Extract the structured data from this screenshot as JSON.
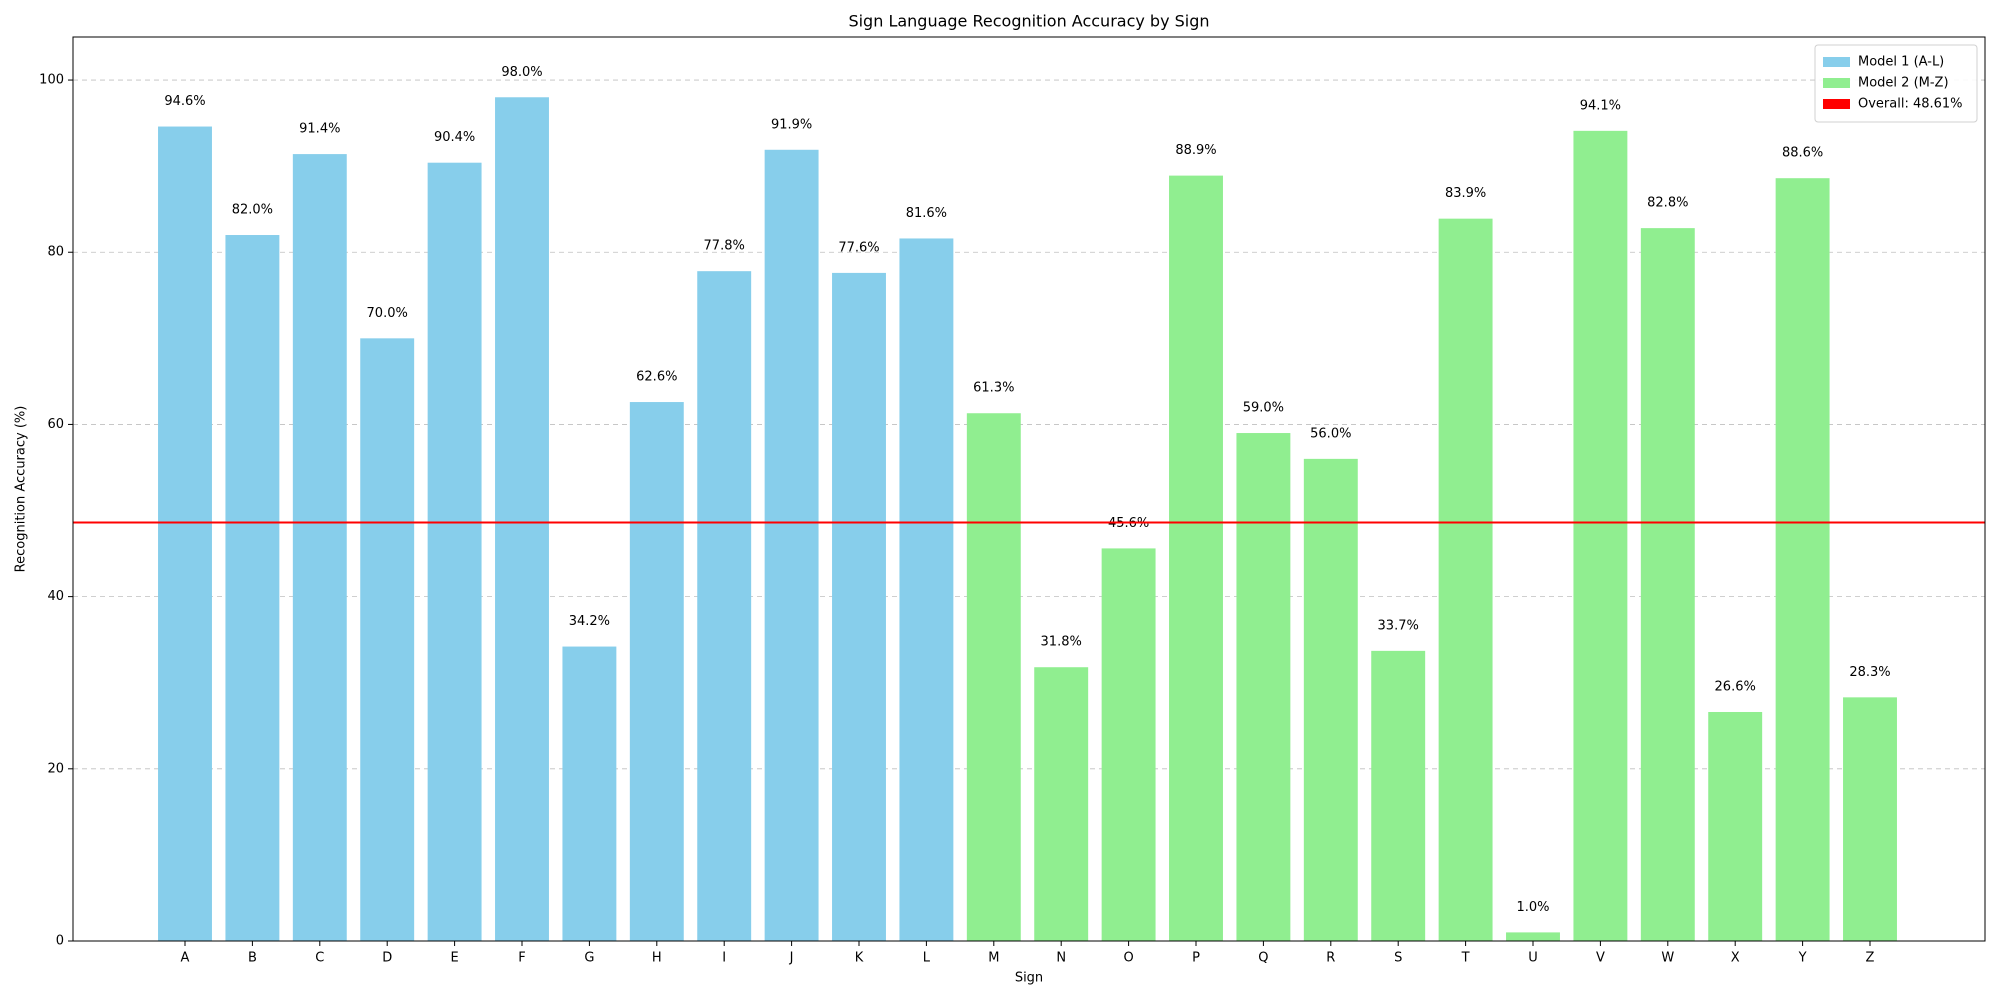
{
  "chart_data": {
    "type": "bar",
    "title": "Sign Language Recognition Accuracy by Sign",
    "x_label": "Sign",
    "y_label": "Recognition Accuracy (%)",
    "categories": [
      "A",
      "B",
      "C",
      "D",
      "E",
      "F",
      "G",
      "H",
      "I",
      "J",
      "K",
      "L",
      "M",
      "N",
      "O",
      "P",
      "Q",
      "R",
      "S",
      "T",
      "U",
      "V",
      "W",
      "X",
      "Y",
      "Z"
    ],
    "series": [
      {
        "name": "Model 1 (A-L)",
        "color": "#87ceeb",
        "values": [
          94.6,
          82.0,
          91.4,
          70.0,
          90.4,
          98.0,
          34.2,
          62.6,
          77.8,
          91.9,
          77.6,
          81.6,
          null,
          null,
          null,
          null,
          null,
          null,
          null,
          null,
          null,
          null,
          null,
          null,
          null,
          null
        ],
        "value_labels": [
          "94.6%",
          "82.0%",
          "91.4%",
          "70.0%",
          "90.4%",
          "98.0%",
          "34.2%",
          "62.6%",
          "77.8%",
          "91.9%",
          "77.6%",
          "81.6%",
          null,
          null,
          null,
          null,
          null,
          null,
          null,
          null,
          null,
          null,
          null,
          null,
          null,
          null
        ]
      },
      {
        "name": "Model 2 (M-Z)",
        "color": "#90ee90",
        "values": [
          null,
          null,
          null,
          null,
          null,
          null,
          null,
          null,
          null,
          null,
          null,
          null,
          61.3,
          31.8,
          45.6,
          88.9,
          59.0,
          56.0,
          33.7,
          83.9,
          1.0,
          94.1,
          82.8,
          26.6,
          88.6,
          28.3
        ],
        "value_labels": [
          null,
          null,
          null,
          null,
          null,
          null,
          null,
          null,
          null,
          null,
          null,
          null,
          "61.3%",
          "31.8%",
          "45.6%",
          "88.9%",
          "59.0%",
          "56.0%",
          "33.7%",
          "83.9%",
          "1.0%",
          "94.1%",
          "82.8%",
          "26.6%",
          "88.6%",
          "28.3%"
        ]
      }
    ],
    "reference_line": {
      "value": 48.61,
      "label": "Overall: 48.61%",
      "color": "#ff0000"
    },
    "ylim": [
      0,
      105
    ],
    "yticks": [
      0,
      20,
      40,
      60,
      80,
      100
    ],
    "grid": true,
    "legend": "upper right"
  }
}
